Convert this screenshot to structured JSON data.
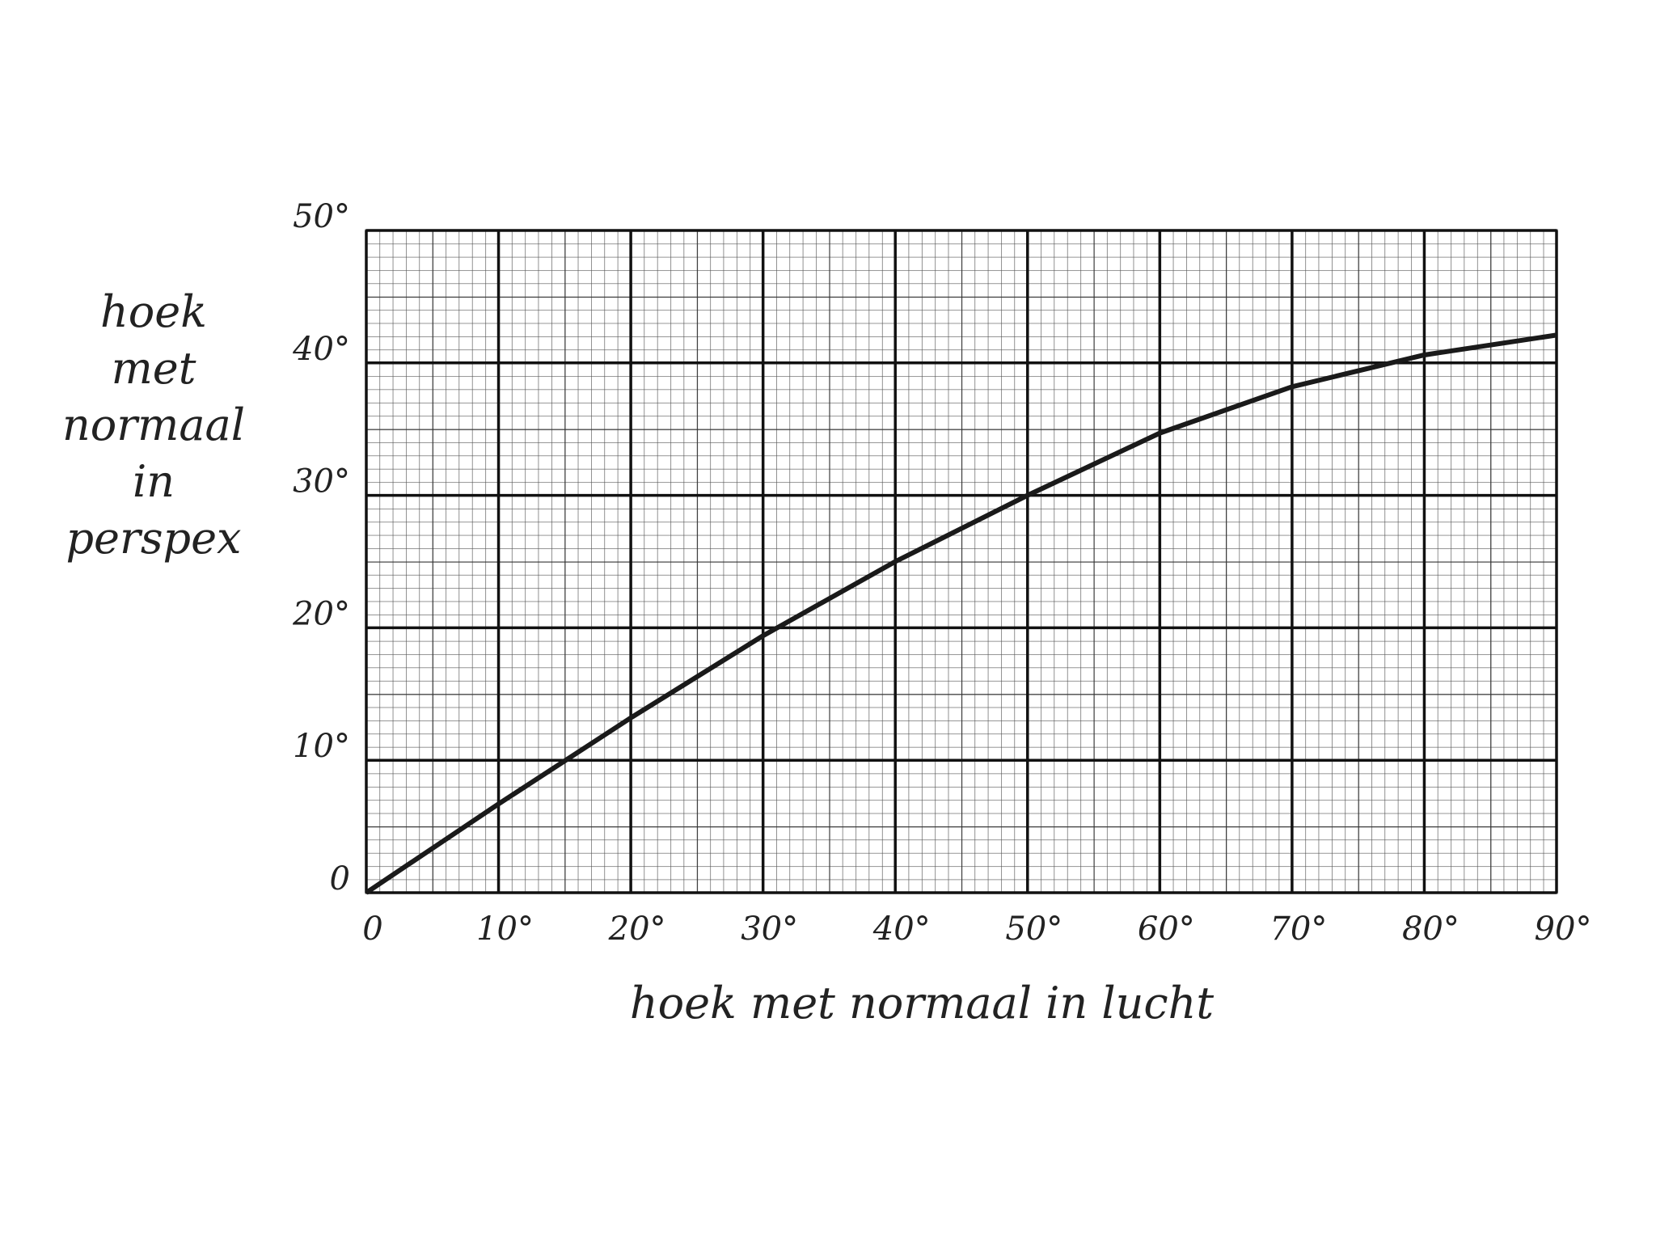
{
  "chart_data": {
    "type": "line",
    "x": [
      0,
      10,
      20,
      30,
      40,
      50,
      60,
      70,
      80,
      90
    ],
    "series": [
      {
        "color": "#1a1a1a",
        "values": [
          0,
          6.7,
          13.2,
          19.4,
          25.0,
          30.0,
          34.7,
          38.2,
          40.6,
          42.1
        ]
      }
    ],
    "xlabel": "hoek met normaal in lucht",
    "ylabel": [
      "hoek",
      "met",
      "normaal",
      "in",
      "perspex"
    ],
    "xlim": [
      0,
      90
    ],
    "xticks": [
      0,
      {
        "value": 10,
        "label": "10°"
      },
      {
        "value": 20,
        "label": "20°"
      },
      {
        "value": 30,
        "label": "30°"
      },
      {
        "value": 40,
        "label": "40°"
      },
      {
        "value": 50,
        "label": "50°"
      },
      {
        "value": 60,
        "label": "60°"
      },
      {
        "value": 70,
        "label": "70°"
      },
      {
        "value": 80,
        "label": "80°"
      },
      {
        "value": 90,
        "label": "90°"
      }
    ],
    "ylim": [
      0,
      50
    ],
    "yticks": [
      0,
      {
        "value": 10,
        "label": "10°"
      },
      {
        "value": 20,
        "label": "20°"
      },
      {
        "value": 30,
        "label": "30°"
      },
      {
        "value": 40,
        "label": "40°"
      },
      {
        "value": 50,
        "label": "50°"
      }
    ],
    "grid": true
  }
}
